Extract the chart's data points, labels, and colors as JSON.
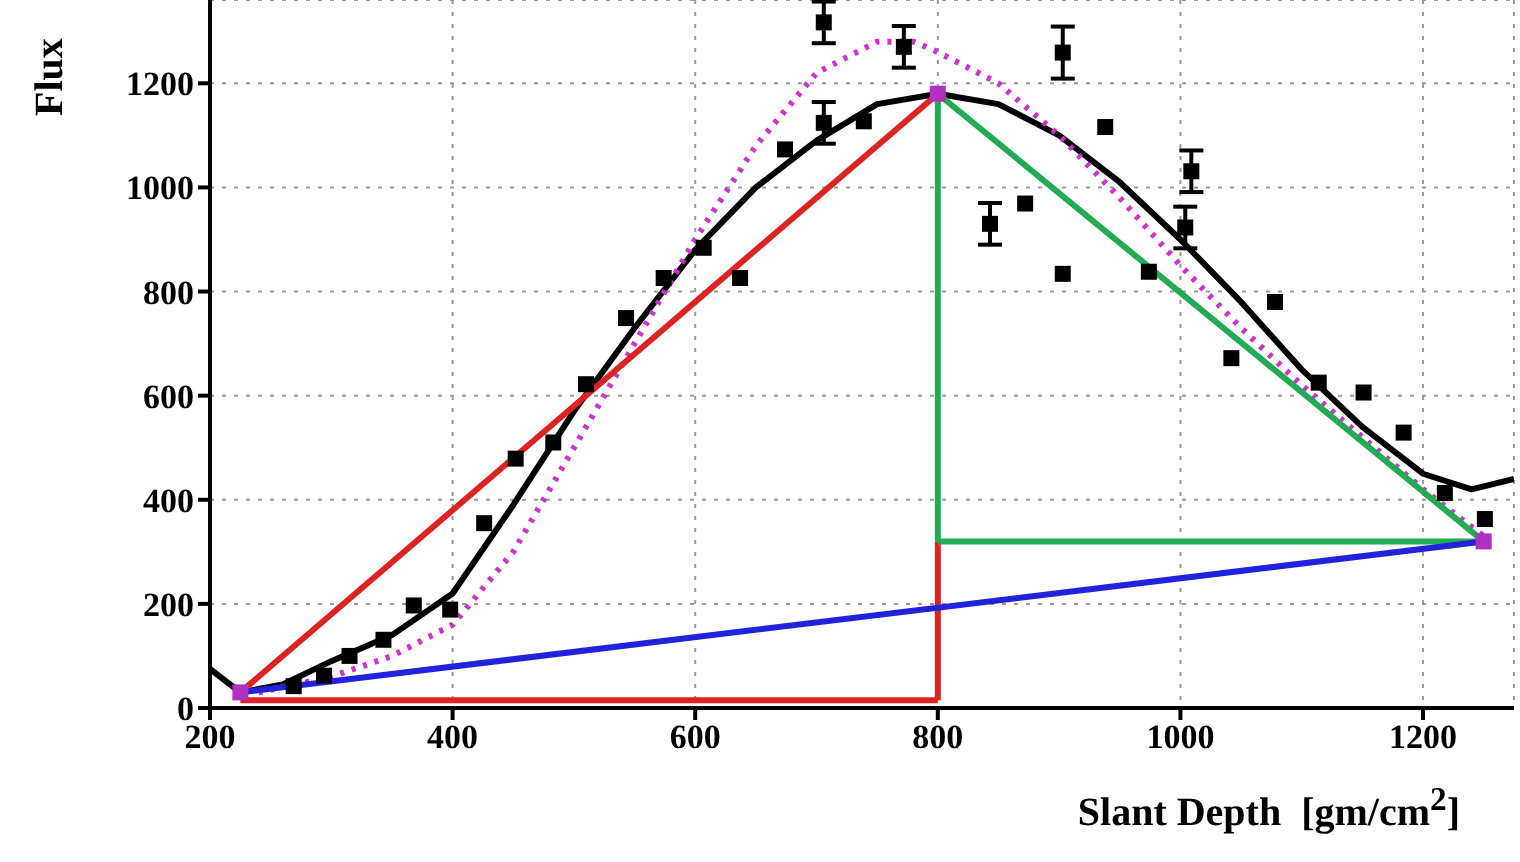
{
  "chart_data": {
    "type": "scatter",
    "xlabel": "Slant Depth  [gm/cm$^{2}$]",
    "ylabel": "Flux",
    "xlim": [
      200,
      1275
    ],
    "ylim": [
      0,
      1360
    ],
    "xticks": [
      200,
      400,
      600,
      800,
      1000,
      1200
    ],
    "yticks": [
      0,
      200,
      400,
      600,
      800,
      1000,
      1200
    ],
    "grid": true,
    "series": [
      {
        "type": "line",
        "color": "#000000",
        "line_style": "solid",
        "x": [
          200,
          225,
          260,
          300,
          350,
          400,
          450,
          500,
          550,
          600,
          650,
          700,
          750,
          800,
          850,
          900,
          950,
          1000,
          1050,
          1100,
          1150,
          1200,
          1240,
          1275
        ],
        "values": [
          75,
          30,
          45,
          90,
          140,
          220,
          390,
          570,
          730,
          880,
          1000,
          1090,
          1160,
          1180,
          1160,
          1100,
          1010,
          900,
          780,
          650,
          540,
          450,
          420,
          440
        ]
      },
      {
        "type": "line",
        "color": "#cc33cc",
        "line_style": "dotted",
        "x": [
          240,
          300,
          350,
          400,
          450,
          500,
          550,
          600,
          650,
          700,
          750,
          780,
          800,
          850,
          900,
          950,
          1000,
          1050,
          1100,
          1150,
          1200,
          1250
        ],
        "values": [
          30,
          60,
          100,
          160,
          300,
          500,
          700,
          900,
          1080,
          1220,
          1280,
          1280,
          1260,
          1200,
          1100,
          980,
          850,
          730,
          620,
          520,
          420,
          330
        ]
      },
      {
        "type": "line",
        "color": "#dd2222",
        "line_style": "solid",
        "x": [
          225,
          800
        ],
        "values": [
          30,
          1180
        ]
      },
      {
        "type": "line",
        "color": "#dd2222",
        "line_style": "solid",
        "x": [
          225,
          800
        ],
        "values": [
          15,
          15
        ]
      },
      {
        "type": "line",
        "color": "#dd2222",
        "line_style": "solid",
        "x": [
          800,
          800
        ],
        "values": [
          15,
          320
        ]
      },
      {
        "type": "line",
        "color": "#22aa55",
        "line_style": "solid",
        "x": [
          800,
          1250
        ],
        "values": [
          1180,
          320
        ]
      },
      {
        "type": "line",
        "color": "#22aa55",
        "line_style": "solid",
        "x": [
          800,
          800
        ],
        "values": [
          320,
          1180
        ]
      },
      {
        "type": "line",
        "color": "#22aa55",
        "line_style": "solid",
        "x": [
          800,
          1250
        ],
        "values": [
          320,
          320
        ]
      },
      {
        "type": "line",
        "color": "#2222dd",
        "line_style": "solid",
        "x": [
          225,
          1250
        ],
        "values": [
          30,
          320
        ]
      },
      {
        "color": "#000000",
        "marker": "square",
        "x": [
          269,
          294,
          315,
          343,
          368,
          398,
          426,
          452,
          483,
          510,
          543,
          574,
          607,
          637,
          674,
          706,
          706,
          739,
          772,
          843,
          872,
          903,
          903,
          938,
          974,
          1009,
          1004,
          1042,
          1078,
          1114,
          1151,
          1184,
          1218,
          1251
        ],
        "values": [
          42,
          62,
          100,
          131,
          197,
          189,
          355,
          479,
          510,
          622,
          749,
          826,
          884,
          826,
          1073,
          1317,
          1124,
          1127,
          1270,
          930,
          969,
          834,
          1259,
          1116,
          838,
          1031,
          923,
          672,
          780,
          625,
          606,
          529,
          413,
          363
        ],
        "errors": [
          null,
          null,
          null,
          null,
          null,
          null,
          null,
          null,
          null,
          null,
          null,
          null,
          null,
          null,
          null,
          40,
          40,
          null,
          40,
          40,
          null,
          null,
          50,
          null,
          null,
          40,
          40,
          null,
          null,
          null,
          null,
          null,
          null,
          null
        ]
      },
      {
        "color": "#b030c0",
        "marker": "square",
        "x": [
          225,
          800,
          1250
        ],
        "values": [
          30,
          1180,
          320
        ]
      }
    ]
  }
}
